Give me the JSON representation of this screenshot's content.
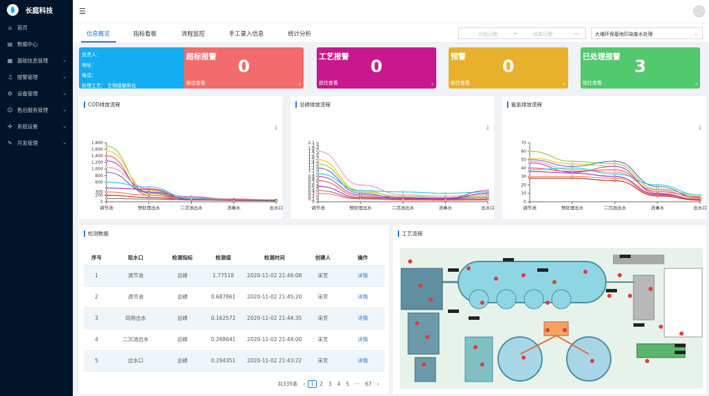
{
  "brand": {
    "name": "长庭科技"
  },
  "menu": [
    {
      "label": "首页",
      "icon": "home-icon",
      "has_arrow": false
    },
    {
      "label": "数据中心",
      "icon": "data-icon",
      "has_arrow": false
    },
    {
      "label": "基础信息管理",
      "icon": "building-icon",
      "has_arrow": true
    },
    {
      "label": "报警管理",
      "icon": "alarm-icon",
      "has_arrow": true
    },
    {
      "label": "设备管理",
      "icon": "device-icon",
      "has_arrow": true
    },
    {
      "label": "售后服务管理",
      "icon": "service-icon",
      "has_arrow": true
    },
    {
      "label": "系统设置",
      "icon": "settings-icon",
      "has_arrow": true
    },
    {
      "label": "开发管理",
      "icon": "edit-icon",
      "has_arrow": true
    }
  ],
  "tabs": [
    "信息概览",
    "指标看板",
    "流程监控",
    "手工录入信息",
    "统计分析"
  ],
  "active_tab": "信息概览",
  "date_range": {
    "start_placeholder": "开始日期",
    "separator": "←",
    "end_placeholder": "结束日期"
  },
  "site_select": {
    "value": "大埔环保基地印染废水处理"
  },
  "info_card": {
    "lines": [
      "负责人：",
      "地址：",
      "电话：",
      "处理工艺：  生物接触氧化"
    ],
    "color": "#13adf1"
  },
  "alarm_cards": [
    {
      "title": "超标报警",
      "count": "0",
      "link": "前往查看",
      "color": "#f36b6b"
    },
    {
      "title": "工艺报警",
      "count": "0",
      "link": "前往查看",
      "color": "#c7188e"
    },
    {
      "title": "预警",
      "count": "0",
      "link": "前往查看",
      "color": "#e8b12b"
    },
    {
      "title": "已处理报警",
      "count": "3",
      "link": "前往查看",
      "color": "#52c96d"
    }
  ],
  "panels": {
    "table_title": "检测数据",
    "process_title": "工艺流程"
  },
  "chart_data": [
    {
      "type": "line",
      "title": "COD排放流程",
      "categories": [
        "调节池",
        "预处理出水",
        "二沉池出水",
        "消毒水",
        "出水口"
      ],
      "yticks": [
        "0",
        "200",
        "300",
        "600",
        "800",
        "1,000",
        "1,200",
        "1,400",
        "1,600",
        "1,800"
      ],
      "ylim": [
        0,
        1800
      ],
      "series": [
        {
          "color": "#8bc34a",
          "values": [
            1700,
            250,
            80,
            60,
            40
          ]
        },
        {
          "color": "#ffc107",
          "values": [
            1550,
            350,
            60,
            50,
            30
          ]
        },
        {
          "color": "#ef5350",
          "values": [
            1400,
            200,
            100,
            70,
            50
          ]
        },
        {
          "color": "#ab47bc",
          "values": [
            1250,
            300,
            150,
            80,
            40
          ]
        },
        {
          "color": "#f48fb1",
          "values": [
            1050,
            400,
            120,
            90,
            60
          ]
        },
        {
          "color": "#5c6bc0",
          "values": [
            900,
            280,
            80,
            60,
            30
          ]
        },
        {
          "color": "#26c6da",
          "values": [
            600,
            450,
            90,
            70,
            50
          ]
        },
        {
          "color": "#9c27b0",
          "values": [
            420,
            380,
            60,
            50,
            30
          ]
        },
        {
          "color": "#ff7043",
          "values": [
            300,
            200,
            50,
            40,
            30
          ]
        },
        {
          "color": "#b71c1c",
          "values": [
            200,
            130,
            60,
            50,
            40
          ]
        },
        {
          "color": "#8d6e63",
          "values": [
            100,
            80,
            60,
            40,
            30
          ]
        }
      ]
    },
    {
      "type": "line",
      "title": "总磷排放流程",
      "categories": [
        "调节池",
        "预处理出水",
        "二沉池出水",
        "消毒水",
        "出水口"
      ],
      "yticks": [
        "0",
        "0.1",
        "0.2",
        "0.3",
        "0.4",
        "0.5",
        "0.6",
        "0.7",
        "0.8",
        "0.9",
        "1",
        "1.1",
        "1.2",
        "1.3",
        "1.4",
        "1.5",
        "1.6",
        "1.7",
        "1.8",
        "1.9",
        "2",
        "2.1"
      ],
      "ylim": [
        0,
        2.1
      ],
      "series": [
        {
          "color": "#f48fb1",
          "values": [
            1.8,
            0.6,
            0.25,
            0.2,
            0.25
          ]
        },
        {
          "color": "#ffc107",
          "values": [
            1.5,
            0.4,
            0.15,
            0.1,
            0.2
          ]
        },
        {
          "color": "#8bc34a",
          "values": [
            1.35,
            0.35,
            0.2,
            0.15,
            0.2
          ]
        },
        {
          "color": "#5c6bc0",
          "values": [
            1.2,
            0.3,
            0.1,
            0.1,
            0.15
          ]
        },
        {
          "color": "#26c6da",
          "values": [
            1.0,
            0.4,
            0.35,
            0.3,
            0.35
          ]
        },
        {
          "color": "#ab47bc",
          "values": [
            0.9,
            0.25,
            0.15,
            0.12,
            0.4
          ]
        },
        {
          "color": "#ef5350",
          "values": [
            0.75,
            0.2,
            0.1,
            0.08,
            0.1
          ]
        },
        {
          "color": "#9c27b0",
          "values": [
            0.55,
            0.15,
            0.12,
            0.1,
            0.3
          ]
        },
        {
          "color": "#8d6e63",
          "values": [
            0.4,
            0.12,
            0.08,
            0.06,
            0.08
          ]
        },
        {
          "color": "#ff7043",
          "values": [
            0.3,
            0.1,
            0.06,
            0.05,
            0.06
          ]
        }
      ]
    },
    {
      "type": "line",
      "title": "氨氮排放流程",
      "categories": [
        "调节池",
        "预处理出水",
        "二沉池出水",
        "消毒水",
        "出水口"
      ],
      "yticks": [
        "0",
        "10",
        "20",
        "30",
        "40",
        "50",
        "60",
        "70"
      ],
      "ylim": [
        0,
        70
      ],
      "series": [
        {
          "color": "#8bc34a",
          "values": [
            60,
            48,
            45,
            15,
            8
          ]
        },
        {
          "color": "#ffc107",
          "values": [
            52,
            45,
            42,
            12,
            6
          ]
        },
        {
          "color": "#5c6bc0",
          "values": [
            50,
            42,
            48,
            18,
            5
          ]
        },
        {
          "color": "#f48fb1",
          "values": [
            48,
            38,
            35,
            14,
            4
          ]
        },
        {
          "color": "#ab47bc",
          "values": [
            46,
            35,
            42,
            10,
            3
          ]
        },
        {
          "color": "#ef5350",
          "values": [
            40,
            36,
            38,
            12,
            6
          ]
        },
        {
          "color": "#26c6da",
          "values": [
            38,
            40,
            33,
            20,
            8
          ]
        },
        {
          "color": "#9c27b0",
          "values": [
            36,
            34,
            30,
            9,
            2
          ]
        },
        {
          "color": "#ff7043",
          "values": [
            30,
            30,
            28,
            8,
            3
          ]
        },
        {
          "color": "#b71c1c",
          "values": [
            28,
            28,
            25,
            7,
            2
          ]
        }
      ]
    }
  ],
  "table": {
    "headers": [
      "序号",
      "取水口",
      "检测指标",
      "检测值",
      "检测时间",
      "创建人",
      "操作"
    ],
    "rows": [
      [
        "1",
        "调节池",
        "总磷",
        "1.77518",
        "2020-11-02 21:46:08",
        "宋芳",
        "详情"
      ],
      [
        "2",
        "调节池",
        "总磷",
        "0.687861",
        "2020-11-02 21:45:20",
        "宋芳",
        "详情"
      ],
      [
        "3",
        "同用出水",
        "总磷",
        "0.162572",
        "2020-11-02 21:44:35",
        "宋芳",
        "详情"
      ],
      [
        "4",
        "二沉池出水",
        "总磷",
        "0.268641",
        "2020-11-02 21:44:00",
        "宋芳",
        "详情"
      ],
      [
        "5",
        "出水口",
        "总磷",
        "0.294351",
        "2020-11-02 21:43:22",
        "宋芳",
        "详情"
      ]
    ]
  },
  "pagination": {
    "total": "共335条",
    "prev": "‹",
    "pages": [
      "1",
      "2",
      "3",
      "4",
      "5",
      "···",
      "67"
    ],
    "next": "›",
    "current": "1"
  }
}
